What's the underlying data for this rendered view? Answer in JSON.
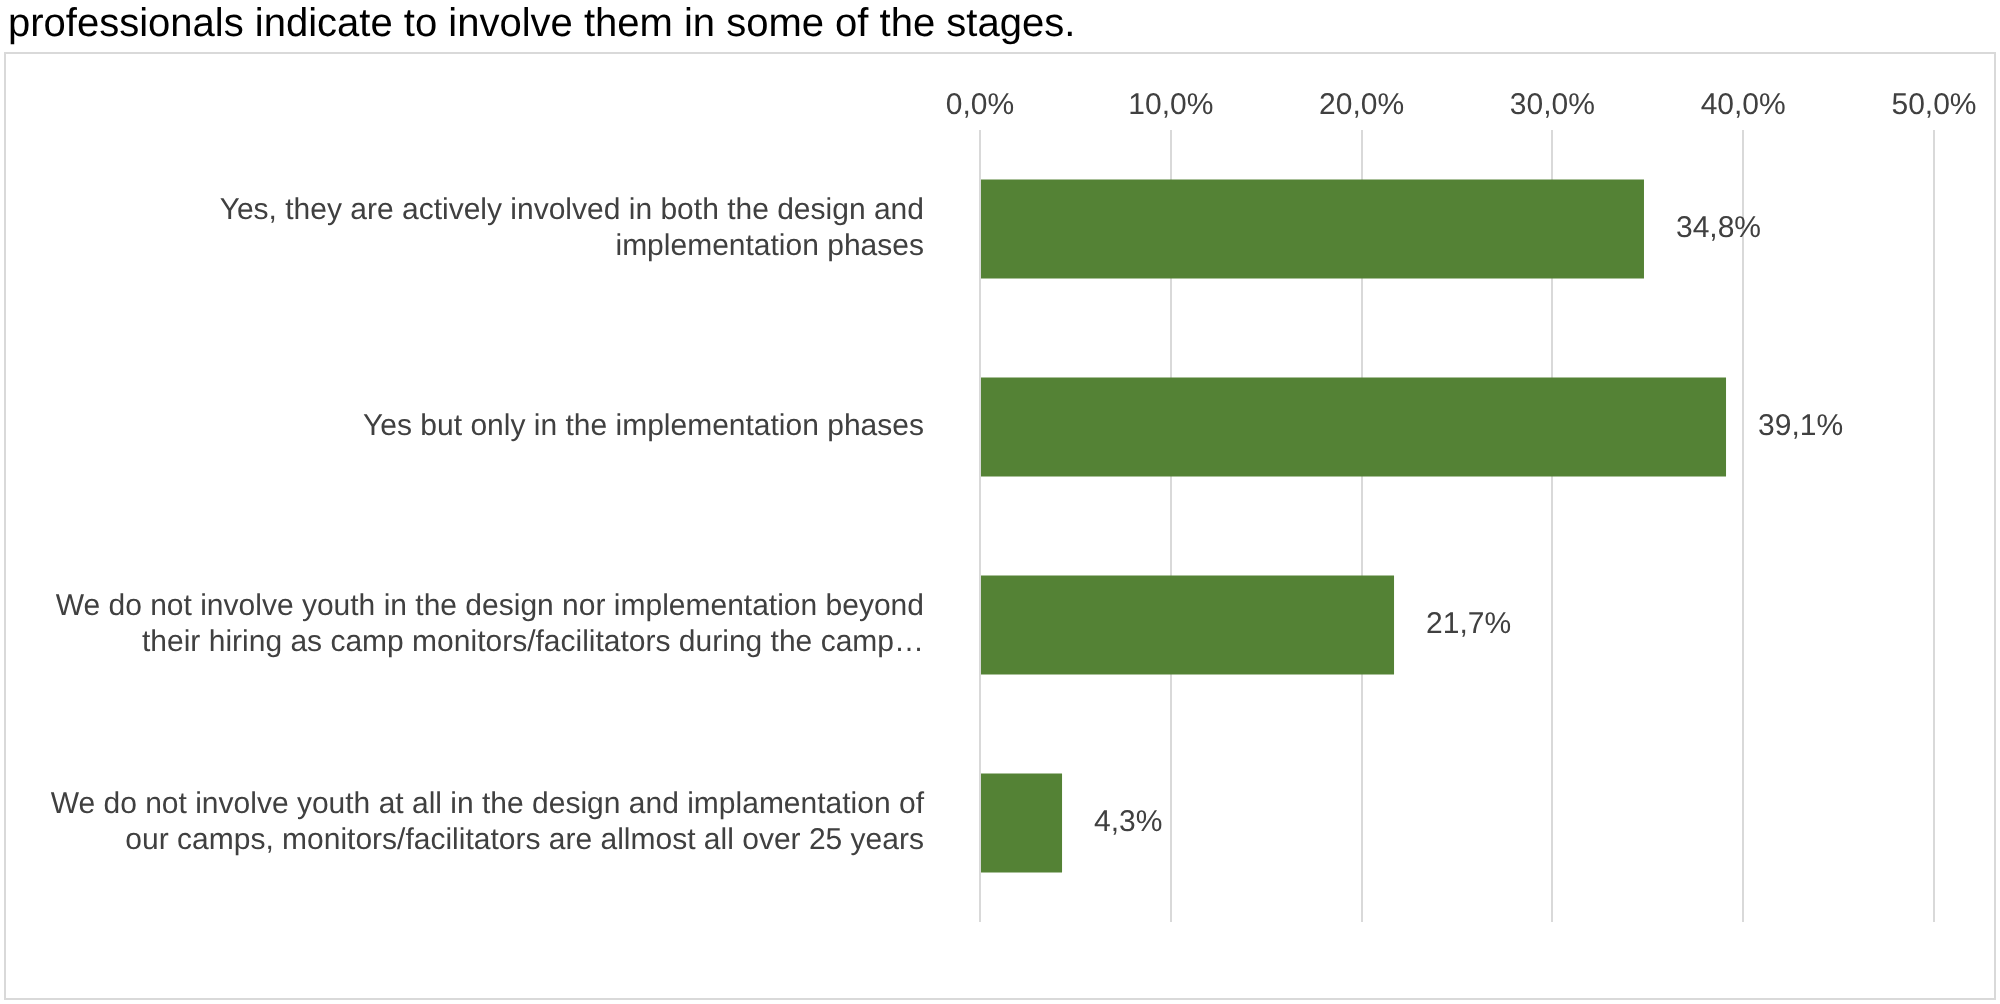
{
  "chart_data": {
    "type": "bar",
    "orientation": "horizontal",
    "subtitle": "professionals indicate to involve them in some of the stages.",
    "categories": [
      "Yes, they are actively involved in both the design and implementation phases",
      "Yes but only in the implementation phases",
      "We do not involve youth in the design nor implementation beyond their hiring as camp monitors/facilitators during the camp…",
      "We do not involve youth at all in the design and implamentation of our camps, monitors/facilitators are allmost all over 25 years"
    ],
    "values": [
      34.8,
      39.1,
      21.7,
      4.3
    ],
    "value_labels": [
      "34,8%",
      "39,1%",
      "21,7%",
      "4,3%"
    ],
    "color": "#548235",
    "xlim": [
      0,
      50
    ],
    "xticks": [
      {
        "value": 0,
        "label": "0,0%"
      },
      {
        "value": 10,
        "label": "10,0%"
      },
      {
        "value": 20,
        "label": "20,0%"
      },
      {
        "value": 30,
        "label": "30,0%"
      },
      {
        "value": 40,
        "label": "40,0%"
      },
      {
        "value": 50,
        "label": "50,0%"
      }
    ],
    "grid": "x",
    "legend": false
  }
}
